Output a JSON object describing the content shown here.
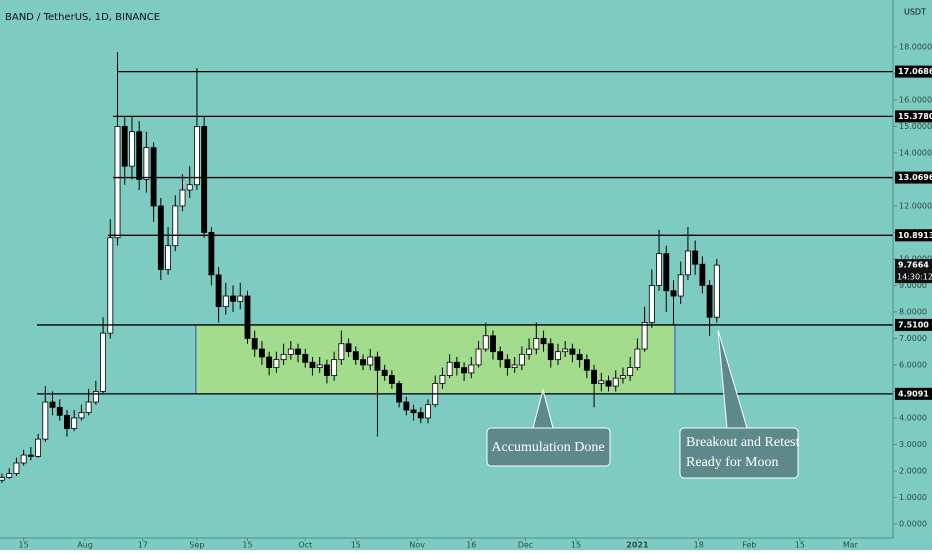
{
  "chart_data": {
    "type": "candlestick",
    "title": "BAND / TetherUS, 1D, BINANCE",
    "currency": "USDT",
    "background": "#7ecbc1",
    "up_color": "#ffffff",
    "down_color": "#000000",
    "level_color": "#000000",
    "zone_color": "#a2dc8c",
    "zone_border": "#2f4fd8",
    "xlim": [
      7.45,
      254.8
    ],
    "ylim": [
      -0.53,
      19.77
    ],
    "x": [
      8,
      10,
      12,
      14,
      16,
      18,
      20,
      22,
      24,
      26,
      28,
      30,
      32,
      34,
      36,
      38,
      40,
      42,
      44,
      46,
      48,
      50,
      52,
      54,
      56,
      58,
      60,
      62,
      64,
      66,
      68,
      70,
      72,
      74,
      76,
      78,
      80,
      82,
      84,
      86,
      88,
      90,
      92,
      94,
      96,
      98,
      100,
      102,
      104,
      106,
      108,
      110,
      112,
      114,
      116,
      118,
      120,
      122,
      124,
      126,
      128,
      130,
      132,
      134,
      136,
      138,
      140,
      142,
      144,
      146,
      148,
      150,
      152,
      154,
      156,
      158,
      160,
      162,
      164,
      166,
      168,
      170,
      172,
      174,
      176,
      178,
      180,
      182,
      184,
      186,
      188,
      190,
      192,
      194,
      196,
      198,
      200,
      202,
      204,
      206
    ],
    "open": [
      1.65,
      1.75,
      1.9,
      2.3,
      2.6,
      2.55,
      3.2,
      4.6,
      4.4,
      4.1,
      3.6,
      4.0,
      4.2,
      4.6,
      5.0,
      7.2,
      10.8,
      15.0,
      13.5,
      14.8,
      13.0,
      14.2,
      12.0,
      9.6,
      10.5,
      12.0,
      12.6,
      12.8,
      15.0,
      11.0,
      9.4,
      8.2,
      8.6,
      8.4,
      8.6,
      7.0,
      6.6,
      6.3,
      5.9,
      6.2,
      6.4,
      6.6,
      6.4,
      6.1,
      5.9,
      6.0,
      5.6,
      6.2,
      6.8,
      6.5,
      6.2,
      6.0,
      6.3,
      5.8,
      5.6,
      5.3,
      4.6,
      4.3,
      4.2,
      4.0,
      4.5,
      5.3,
      5.6,
      6.1,
      5.9,
      5.7,
      6.0,
      6.6,
      7.1,
      6.5,
      6.2,
      5.9,
      6.0,
      6.4,
      6.6,
      7.0,
      6.8,
      6.2,
      6.5,
      6.6,
      6.4,
      6.2,
      5.8,
      5.3,
      5.4,
      5.2,
      5.5,
      5.6,
      5.9,
      6.6,
      7.6,
      9.0,
      10.2,
      8.8,
      8.6,
      9.4,
      10.3,
      9.8,
      9.0,
      7.8
    ],
    "high": [
      1.9,
      2.1,
      2.5,
      2.8,
      2.9,
      3.4,
      5.2,
      5.0,
      4.7,
      4.3,
      4.3,
      4.5,
      5.1,
      5.4,
      7.8,
      11.5,
      17.8,
      15.4,
      15.4,
      15.2,
      14.8,
      14.4,
      12.3,
      11.2,
      12.4,
      13.2,
      13.5,
      17.2,
      15.4,
      11.2,
      9.7,
      9.1,
      9.0,
      9.1,
      8.8,
      7.3,
      6.9,
      6.5,
      6.5,
      6.8,
      6.9,
      6.8,
      6.6,
      6.3,
      6.3,
      6.2,
      6.5,
      7.3,
      7.0,
      6.7,
      6.4,
      6.6,
      6.5,
      6.0,
      5.8,
      5.4,
      4.8,
      4.5,
      4.4,
      4.7,
      5.6,
      5.9,
      6.4,
      6.3,
      6.1,
      6.3,
      6.9,
      7.6,
      7.3,
      6.7,
      6.4,
      6.3,
      6.7,
      7.0,
      7.6,
      7.3,
      7.0,
      6.8,
      6.9,
      6.8,
      6.6,
      6.4,
      6.0,
      5.7,
      5.6,
      5.8,
      5.9,
      6.3,
      7.0,
      8.2,
      9.6,
      11.1,
      10.5,
      9.2,
      9.9,
      11.2,
      10.7,
      10.1,
      9.2,
      10.0
    ],
    "low": [
      1.55,
      1.7,
      1.8,
      2.2,
      2.4,
      2.5,
      3.1,
      4.1,
      3.9,
      3.3,
      3.5,
      3.9,
      4.1,
      4.5,
      4.9,
      7.0,
      10.5,
      12.8,
      13.0,
      12.6,
      12.5,
      11.4,
      9.2,
      9.4,
      10.3,
      11.8,
      12.3,
      12.6,
      10.8,
      9.0,
      7.6,
      7.9,
      8.0,
      8.1,
      6.8,
      6.3,
      6.0,
      5.6,
      5.7,
      6.0,
      6.2,
      6.1,
      5.9,
      5.6,
      5.7,
      5.3,
      5.4,
      6.0,
      6.3,
      6.0,
      5.8,
      5.8,
      3.3,
      5.4,
      5.1,
      4.4,
      4.1,
      3.9,
      3.8,
      3.8,
      4.4,
      5.1,
      5.5,
      5.6,
      5.4,
      5.5,
      5.9,
      6.5,
      6.2,
      5.9,
      5.6,
      5.7,
      5.8,
      6.2,
      6.4,
      6.5,
      5.9,
      6.0,
      6.3,
      6.1,
      5.9,
      5.5,
      4.4,
      5.0,
      5.0,
      5.0,
      5.3,
      5.4,
      5.8,
      6.5,
      7.4,
      8.8,
      8.0,
      7.5,
      8.3,
      9.2,
      9.4,
      8.7,
      7.1,
      7.6
    ],
    "close": [
      1.75,
      1.9,
      2.3,
      2.6,
      2.55,
      3.2,
      4.6,
      4.4,
      4.1,
      3.6,
      4.0,
      4.2,
      4.6,
      5.0,
      7.2,
      10.8,
      15.0,
      13.5,
      14.8,
      13.0,
      14.2,
      12.0,
      9.6,
      10.5,
      12.0,
      12.6,
      12.8,
      15.0,
      11.0,
      9.4,
      8.2,
      8.6,
      8.4,
      8.6,
      7.0,
      6.6,
      6.3,
      5.9,
      6.2,
      6.4,
      6.6,
      6.4,
      6.1,
      5.9,
      6.0,
      5.6,
      6.2,
      6.8,
      6.5,
      6.2,
      6.0,
      6.3,
      5.8,
      5.6,
      5.3,
      4.6,
      4.3,
      4.2,
      4.0,
      4.5,
      5.3,
      5.6,
      6.1,
      5.9,
      5.7,
      6.0,
      6.6,
      7.1,
      6.5,
      6.2,
      5.9,
      6.0,
      6.4,
      6.6,
      7.0,
      6.8,
      6.2,
      6.5,
      6.6,
      6.4,
      6.2,
      5.8,
      5.3,
      5.4,
      5.2,
      5.5,
      5.6,
      5.9,
      6.6,
      7.6,
      9.0,
      10.2,
      8.8,
      8.6,
      9.4,
      10.3,
      9.8,
      9.0,
      7.8,
      9.7664
    ],
    "xticks": [
      {
        "value": 14,
        "label": "15"
      },
      {
        "value": 31,
        "label": "Aug"
      },
      {
        "value": 47,
        "label": "17"
      },
      {
        "value": 62,
        "label": "Sep"
      },
      {
        "value": 76,
        "label": "15"
      },
      {
        "value": 92,
        "label": "Oct"
      },
      {
        "value": 106,
        "label": "15"
      },
      {
        "value": 123,
        "label": "Nov"
      },
      {
        "value": 138,
        "label": "16"
      },
      {
        "value": 153,
        "label": "Dec"
      },
      {
        "value": 167,
        "label": "15"
      },
      {
        "value": 184,
        "label": "2021",
        "bold": true
      },
      {
        "value": 201,
        "label": "18"
      },
      {
        "value": 215,
        "label": "Feb"
      },
      {
        "value": 229,
        "label": "15"
      },
      {
        "value": 243,
        "label": "Mar"
      }
    ],
    "yticks": [
      {
        "value": 0,
        "label": "0.0000"
      },
      {
        "value": 1,
        "label": "1.0000"
      },
      {
        "value": 2,
        "label": "2.0000"
      },
      {
        "value": 3,
        "label": "3.0000"
      },
      {
        "value": 4,
        "label": "4.0000"
      },
      {
        "value": 5,
        "label": "5.0000"
      },
      {
        "value": 6,
        "label": "6.0000"
      },
      {
        "value": 7,
        "label": "7.0000"
      },
      {
        "value": 8,
        "label": "8.0000"
      },
      {
        "value": 9,
        "label": "9.0000"
      },
      {
        "value": 10,
        "label": "10.0000"
      },
      {
        "value": 11,
        "label": "11.0000"
      },
      {
        "value": 12,
        "label": "12.0000"
      },
      {
        "value": 13,
        "label": "13.0000"
      },
      {
        "value": 14,
        "label": "14.0000"
      },
      {
        "value": 15,
        "label": "15.0000"
      },
      {
        "value": 16,
        "label": "16.0000"
      },
      {
        "value": 17,
        "label": "17.0000"
      },
      {
        "value": 18,
        "label": "18.0000"
      }
    ],
    "levels": [
      {
        "value": 17.0686,
        "label": "17.0686",
        "start": 39.9
      },
      {
        "value": 15.378,
        "label": "15.3780",
        "start": 38.8
      },
      {
        "value": 13.0696,
        "label": "13.0696",
        "start": 38.8
      },
      {
        "value": 10.8913,
        "label": "10.8913",
        "start": 37.4
      },
      {
        "value": 7.51,
        "label": "7.5100",
        "start": 17.7
      },
      {
        "value": 4.9091,
        "label": "4.9091",
        "start": 17.7
      }
    ],
    "zone": {
      "x": [
        61.7,
        194.4
      ],
      "y": [
        4.9091,
        7.51
      ]
    },
    "last_price": 9.7664,
    "countdown": "14:30:12",
    "annotations": [
      {
        "lines": [
          "Accumulation Done"
        ]
      },
      {
        "lines": [
          "Breakout and Retest",
          "Ready for Moon"
        ]
      }
    ]
  }
}
